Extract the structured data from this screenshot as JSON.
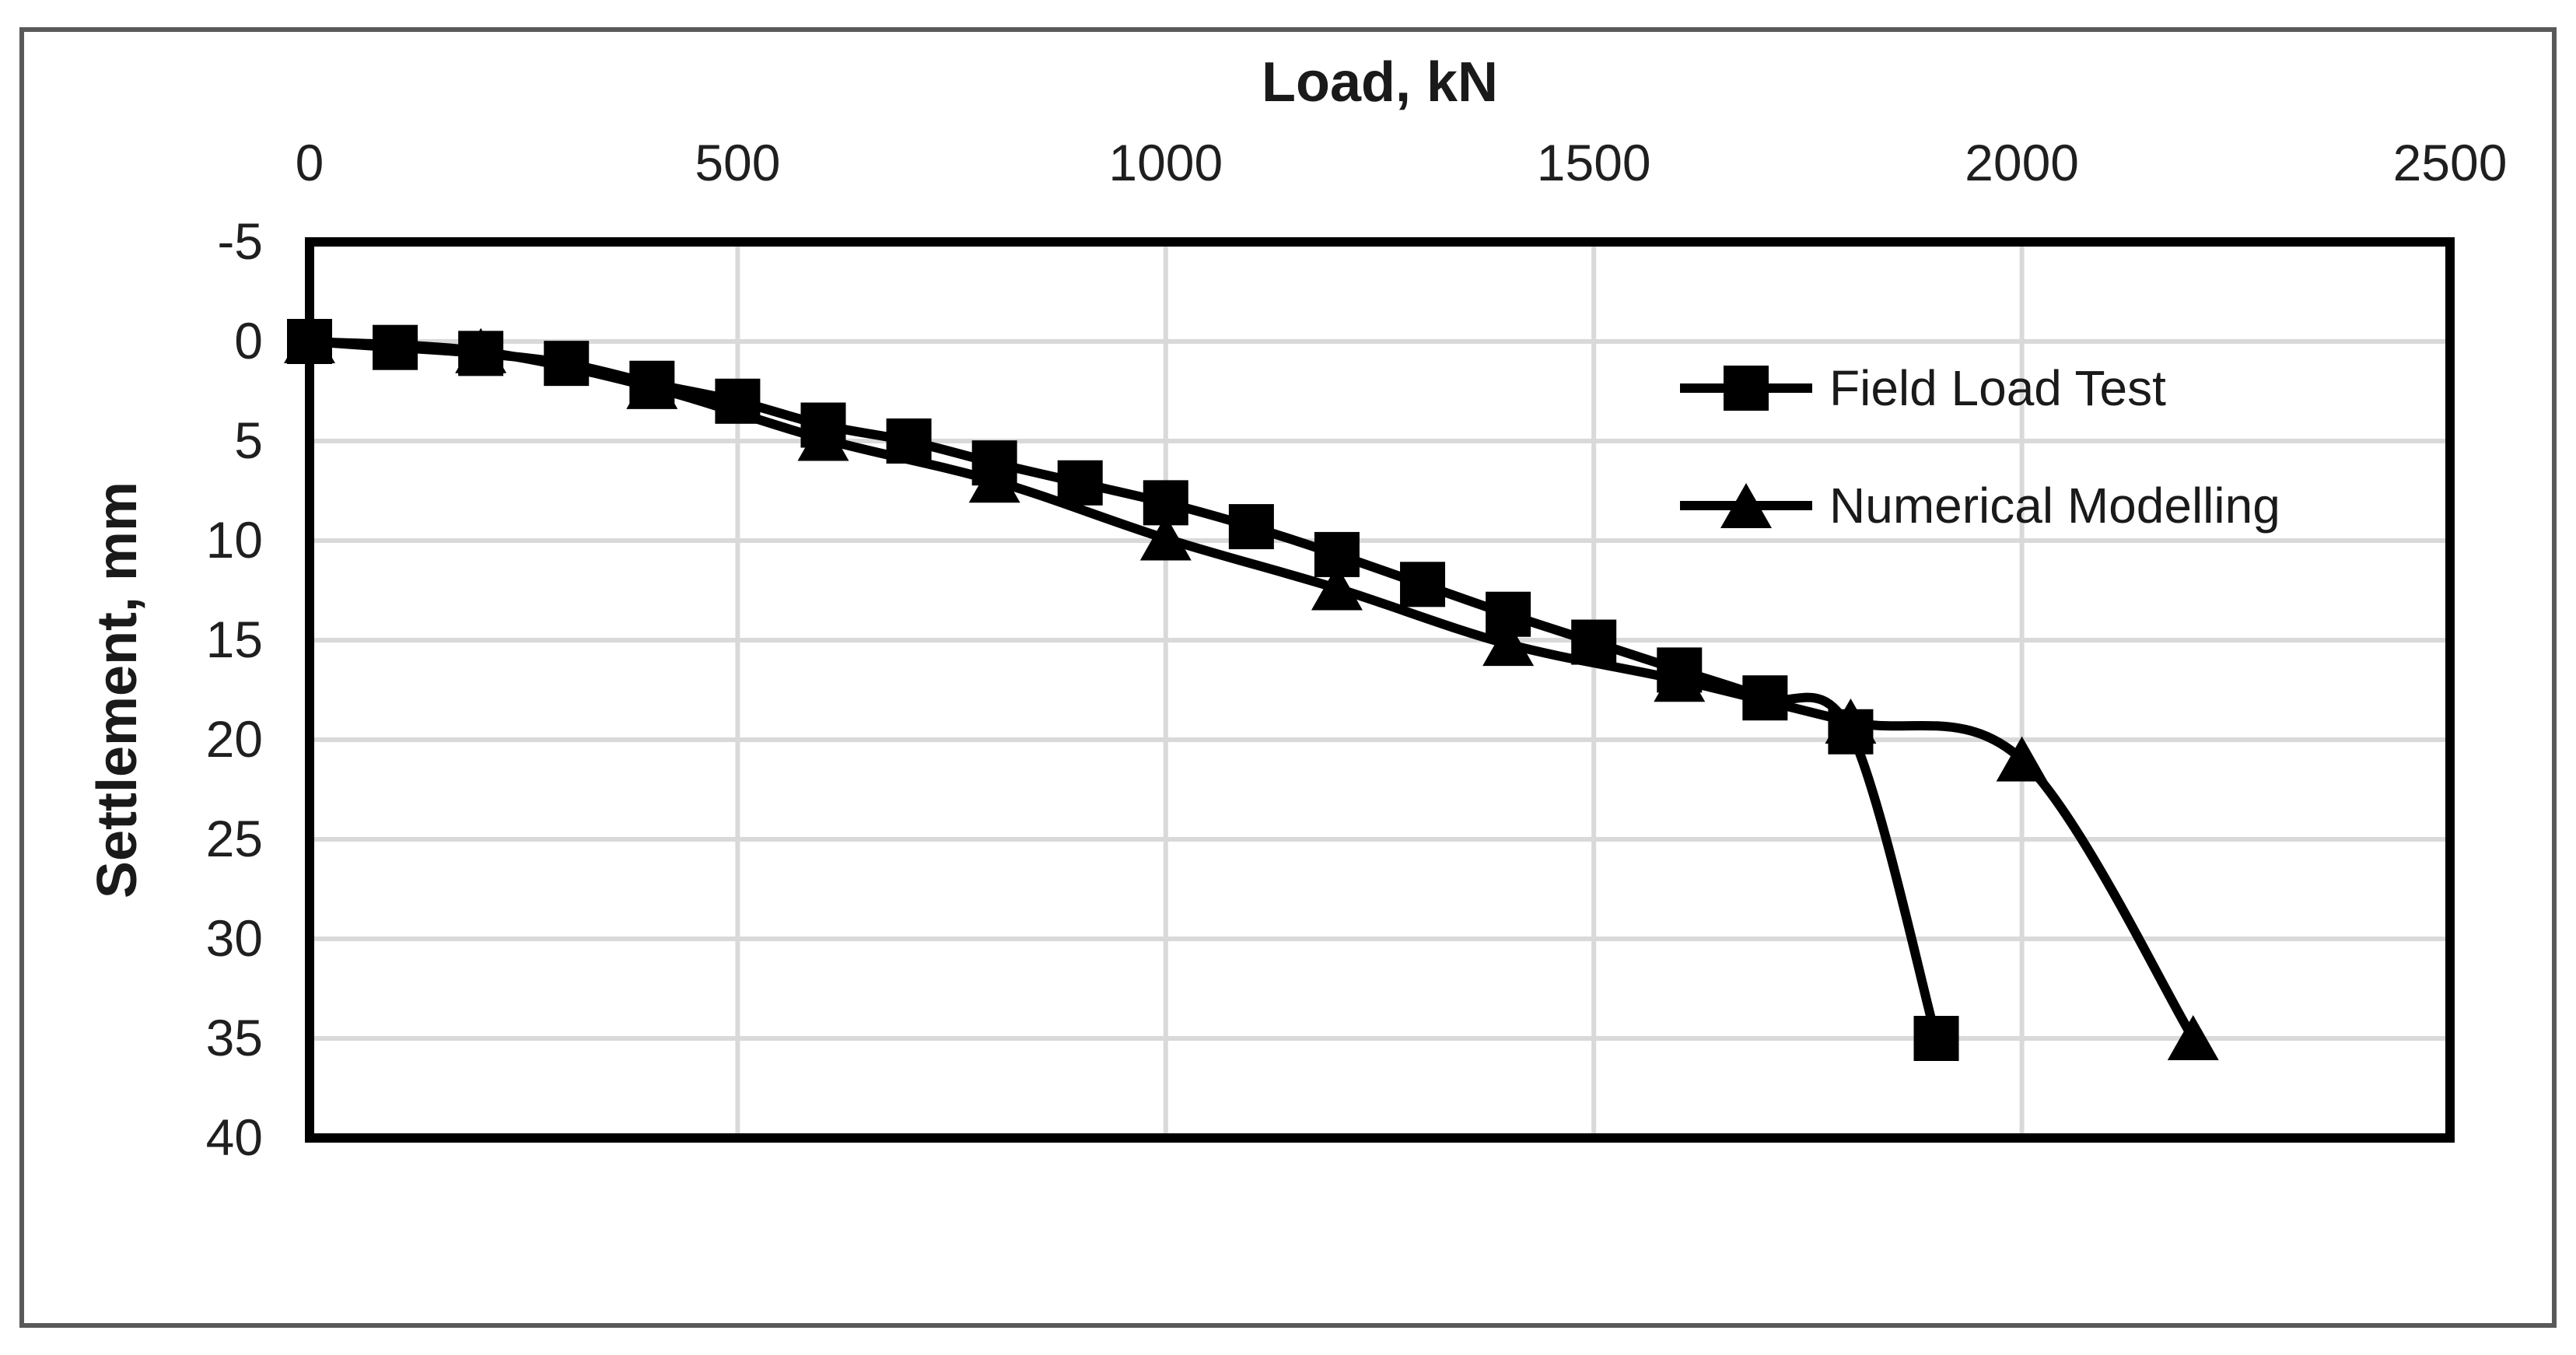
{
  "figure": {
    "background": "#ffffff",
    "border_color": "#595959",
    "text_color": "#1f1f1f"
  },
  "chart_data": {
    "type": "line",
    "title": "",
    "xlabel": "Load, kN",
    "ylabel": "Settlement, mm",
    "x_axis": {
      "position": "top",
      "min": 0,
      "max": 2500,
      "tick_interval": 500,
      "ticks": [
        "0",
        "500",
        "1000",
        "1500",
        "2000",
        "2500"
      ]
    },
    "y_axis": {
      "inverted": true,
      "min": -5,
      "max": 40,
      "tick_interval": 5,
      "ticks": [
        "-5",
        "0",
        "5",
        "10",
        "15",
        "20",
        "25",
        "30",
        "35",
        "40"
      ]
    },
    "grid": true,
    "gridline_color": "#d9d9d9",
    "axis_color": "#000000",
    "legend_position": "inside-right",
    "series": [
      {
        "name": "Field Load Test",
        "marker": "square",
        "color": "#000000",
        "smooth": true,
        "points": [
          [
            0,
            0
          ],
          [
            100,
            0.3
          ],
          [
            200,
            0.6
          ],
          [
            300,
            1.1
          ],
          [
            400,
            2.1
          ],
          [
            500,
            3.0
          ],
          [
            600,
            4.2
          ],
          [
            700,
            5.0
          ],
          [
            800,
            6.1
          ],
          [
            900,
            7.1
          ],
          [
            1000,
            8.1
          ],
          [
            1100,
            9.3
          ],
          [
            1200,
            10.7
          ],
          [
            1300,
            12.2
          ],
          [
            1400,
            13.7
          ],
          [
            1500,
            15.1
          ],
          [
            1600,
            16.5
          ],
          [
            1700,
            17.9
          ],
          [
            1800,
            19.6
          ],
          [
            1900,
            35
          ]
        ]
      },
      {
        "name": "Numerical Modelling",
        "marker": "triangle",
        "color": "#000000",
        "smooth": true,
        "points": [
          [
            0,
            0
          ],
          [
            200,
            0.5
          ],
          [
            400,
            2.3
          ],
          [
            600,
            4.9
          ],
          [
            800,
            7.0
          ],
          [
            1000,
            9.9
          ],
          [
            1200,
            12.4
          ],
          [
            1400,
            15.2
          ],
          [
            1600,
            17.0
          ],
          [
            1800,
            19.1
          ],
          [
            2000,
            21.0
          ],
          [
            2200,
            35
          ]
        ]
      }
    ]
  }
}
